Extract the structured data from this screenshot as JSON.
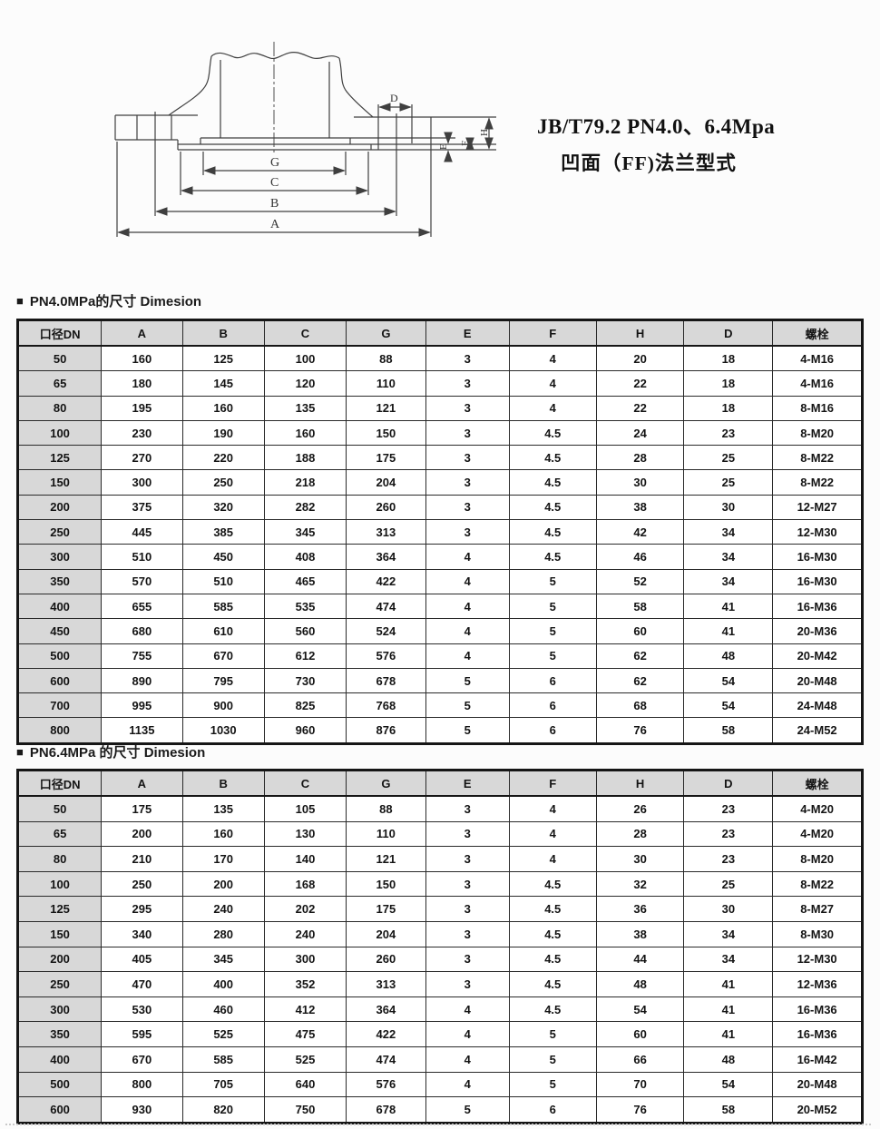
{
  "title": {
    "line1": "JB/T79.2 PN4.0、6.4Mpa",
    "line2": "凹面（FF)法兰型式"
  },
  "drawing": {
    "labels": {
      "A": "A",
      "B": "B",
      "C": "C",
      "G": "G",
      "D": "D",
      "E": "E",
      "F": "F",
      "H": "H"
    }
  },
  "colors": {
    "table_header_bg": "#d8d8d8",
    "line_color": "#3f3f3f",
    "border_color": "#161616"
  },
  "sections": [
    {
      "bullet": "■",
      "label": "PN4.0MPa的尺寸 Dimesion"
    },
    {
      "bullet": "■",
      "label": "PN6.4MPa 的尺寸 Dimesion"
    }
  ],
  "tables": [
    {
      "headers": [
        "口径DN",
        "A",
        "B",
        "C",
        "G",
        "E",
        "F",
        "H",
        "D",
        "螺栓"
      ],
      "rows": [
        [
          "50",
          "160",
          "125",
          "100",
          "88",
          "3",
          "4",
          "20",
          "18",
          "4-M16"
        ],
        [
          "65",
          "180",
          "145",
          "120",
          "110",
          "3",
          "4",
          "22",
          "18",
          "4-M16"
        ],
        [
          "80",
          "195",
          "160",
          "135",
          "121",
          "3",
          "4",
          "22",
          "18",
          "8-M16"
        ],
        [
          "100",
          "230",
          "190",
          "160",
          "150",
          "3",
          "4.5",
          "24",
          "23",
          "8-M20"
        ],
        [
          "125",
          "270",
          "220",
          "188",
          "175",
          "3",
          "4.5",
          "28",
          "25",
          "8-M22"
        ],
        [
          "150",
          "300",
          "250",
          "218",
          "204",
          "3",
          "4.5",
          "30",
          "25",
          "8-M22"
        ],
        [
          "200",
          "375",
          "320",
          "282",
          "260",
          "3",
          "4.5",
          "38",
          "30",
          "12-M27"
        ],
        [
          "250",
          "445",
          "385",
          "345",
          "313",
          "3",
          "4.5",
          "42",
          "34",
          "12-M30"
        ],
        [
          "300",
          "510",
          "450",
          "408",
          "364",
          "4",
          "4.5",
          "46",
          "34",
          "16-M30"
        ],
        [
          "350",
          "570",
          "510",
          "465",
          "422",
          "4",
          "5",
          "52",
          "34",
          "16-M30"
        ],
        [
          "400",
          "655",
          "585",
          "535",
          "474",
          "4",
          "5",
          "58",
          "41",
          "16-M36"
        ],
        [
          "450",
          "680",
          "610",
          "560",
          "524",
          "4",
          "5",
          "60",
          "41",
          "20-M36"
        ],
        [
          "500",
          "755",
          "670",
          "612",
          "576",
          "4",
          "5",
          "62",
          "48",
          "20-M42"
        ],
        [
          "600",
          "890",
          "795",
          "730",
          "678",
          "5",
          "6",
          "62",
          "54",
          "20-M48"
        ],
        [
          "700",
          "995",
          "900",
          "825",
          "768",
          "5",
          "6",
          "68",
          "54",
          "24-M48"
        ],
        [
          "800",
          "1135",
          "1030",
          "960",
          "876",
          "5",
          "6",
          "76",
          "58",
          "24-M52"
        ]
      ]
    },
    {
      "headers": [
        "口径DN",
        "A",
        "B",
        "C",
        "G",
        "E",
        "F",
        "H",
        "D",
        "螺栓"
      ],
      "rows": [
        [
          "50",
          "175",
          "135",
          "105",
          "88",
          "3",
          "4",
          "26",
          "23",
          "4-M20"
        ],
        [
          "65",
          "200",
          "160",
          "130",
          "110",
          "3",
          "4",
          "28",
          "23",
          "4-M20"
        ],
        [
          "80",
          "210",
          "170",
          "140",
          "121",
          "3",
          "4",
          "30",
          "23",
          "8-M20"
        ],
        [
          "100",
          "250",
          "200",
          "168",
          "150",
          "3",
          "4.5",
          "32",
          "25",
          "8-M22"
        ],
        [
          "125",
          "295",
          "240",
          "202",
          "175",
          "3",
          "4.5",
          "36",
          "30",
          "8-M27"
        ],
        [
          "150",
          "340",
          "280",
          "240",
          "204",
          "3",
          "4.5",
          "38",
          "34",
          "8-M30"
        ],
        [
          "200",
          "405",
          "345",
          "300",
          "260",
          "3",
          "4.5",
          "44",
          "34",
          "12-M30"
        ],
        [
          "250",
          "470",
          "400",
          "352",
          "313",
          "3",
          "4.5",
          "48",
          "41",
          "12-M36"
        ],
        [
          "300",
          "530",
          "460",
          "412",
          "364",
          "4",
          "4.5",
          "54",
          "41",
          "16-M36"
        ],
        [
          "350",
          "595",
          "525",
          "475",
          "422",
          "4",
          "5",
          "60",
          "41",
          "16-M36"
        ],
        [
          "400",
          "670",
          "585",
          "525",
          "474",
          "4",
          "5",
          "66",
          "48",
          "16-M42"
        ],
        [
          "500",
          "800",
          "705",
          "640",
          "576",
          "4",
          "5",
          "70",
          "54",
          "20-M48"
        ],
        [
          "600",
          "930",
          "820",
          "750",
          "678",
          "5",
          "6",
          "76",
          "58",
          "20-M52"
        ]
      ]
    }
  ]
}
